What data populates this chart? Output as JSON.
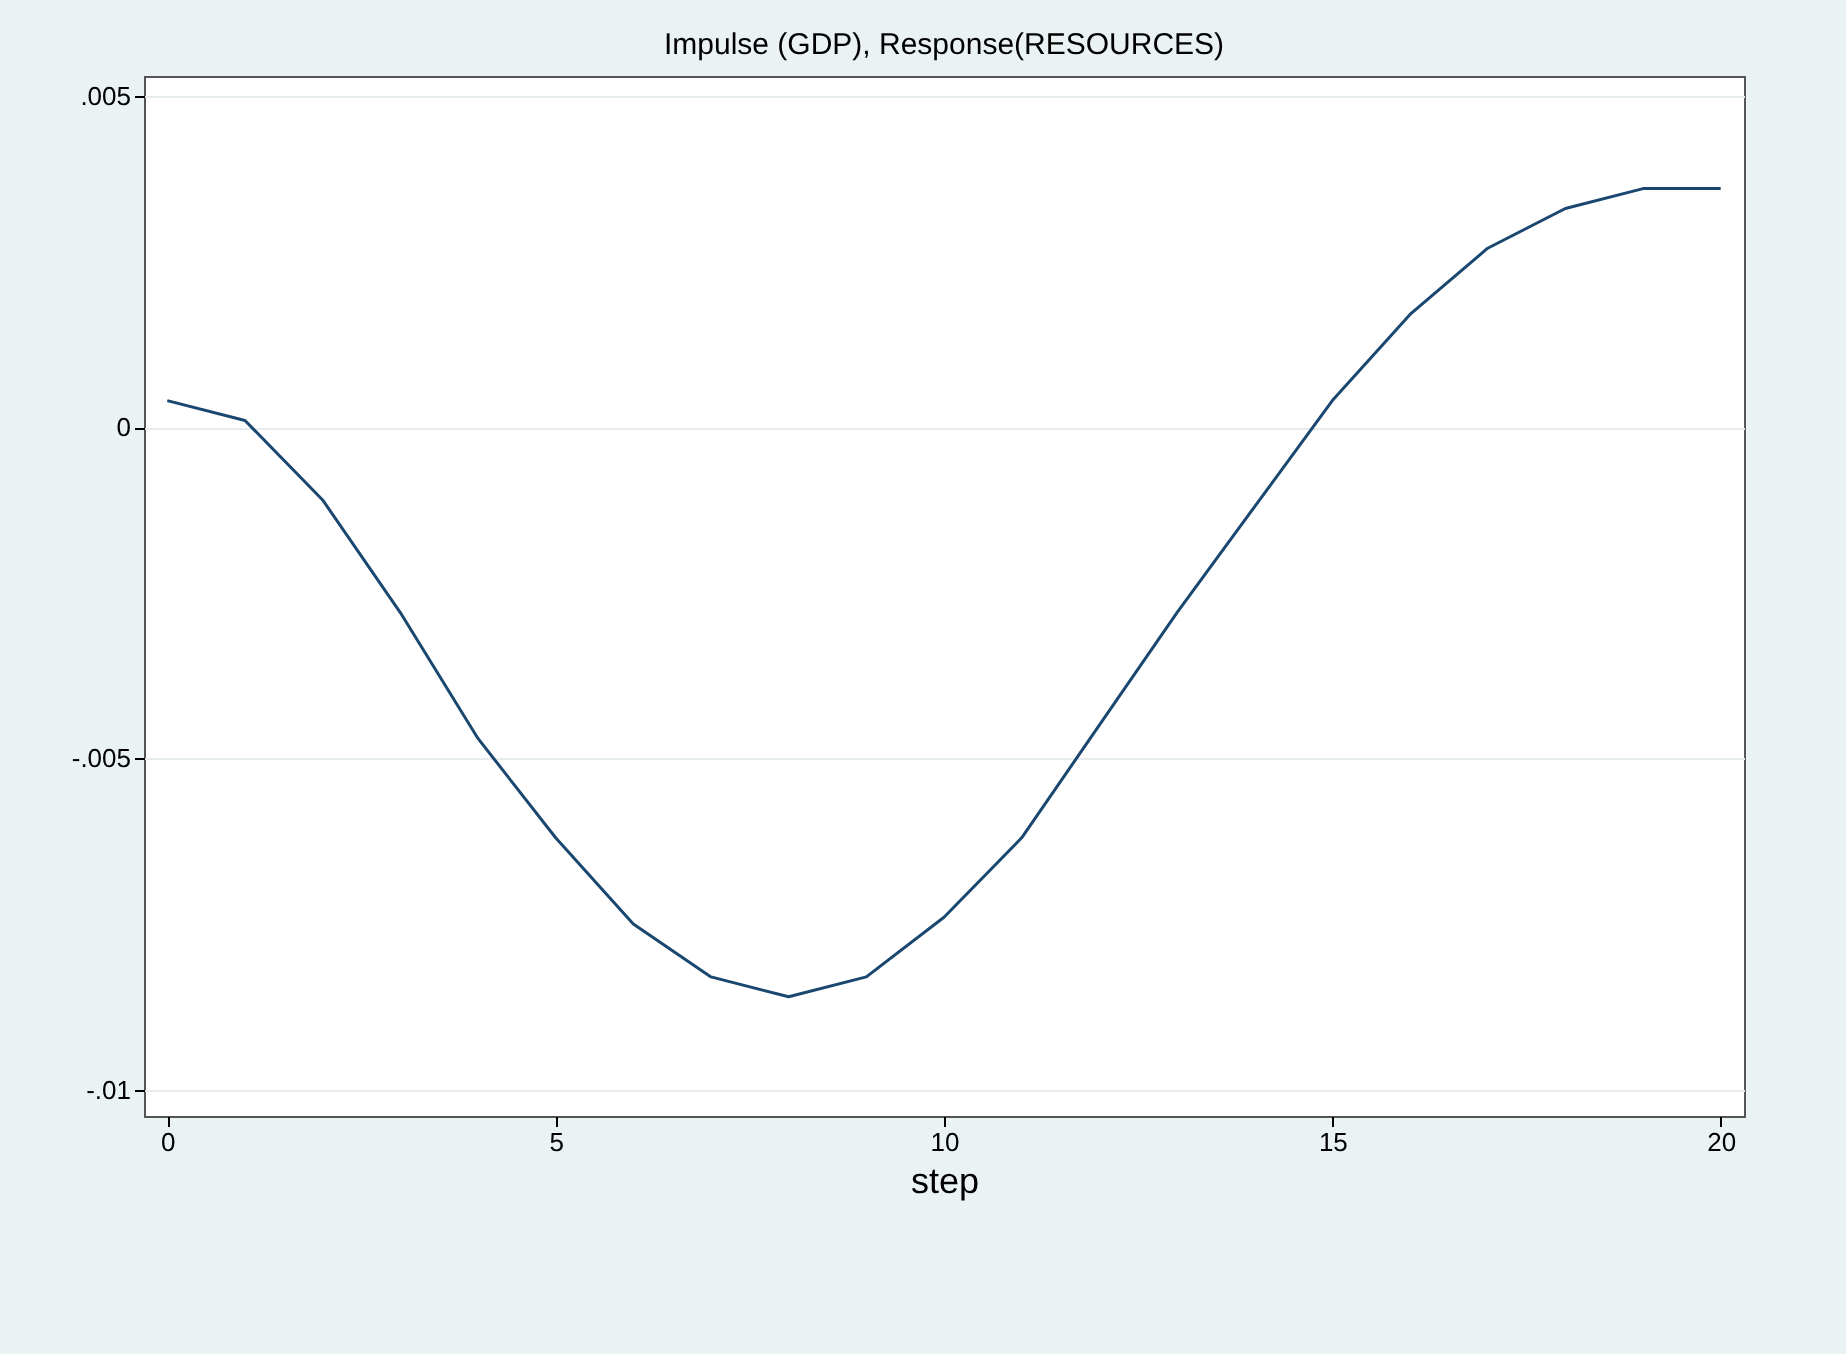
{
  "chart_data": {
    "type": "line",
    "title": "Impulse (GDP), Response(RESOURCES)",
    "xlabel": "step",
    "x": [
      0,
      1,
      2,
      3,
      4,
      5,
      6,
      7,
      8,
      9,
      10,
      11,
      12,
      13,
      14,
      15,
      16,
      17,
      18,
      19,
      20
    ],
    "series": [
      {
        "color": "#1a476f",
        "values": [
          0.0004,
          0.0001,
          -0.0011,
          -0.0028,
          -0.0047,
          -0.0062,
          -0.0075,
          -0.0083,
          -0.0086,
          -0.0083,
          -0.0074,
          -0.0062,
          -0.0045,
          -0.0028,
          -0.0012,
          0.0004,
          0.0017,
          0.0027,
          0.0033,
          0.0036,
          0.0036
        ]
      }
    ],
    "xlim": [
      -0.3,
      20.3
    ],
    "xticks": [
      0,
      5,
      10,
      15,
      20
    ],
    "ylim": [
      -0.0104,
      0.0053
    ],
    "yticks": [
      {
        "value": 0.005,
        "label": ".005"
      },
      {
        "value": 0,
        "label": "0"
      },
      {
        "value": -0.005,
        "label": "-.005"
      },
      {
        "value": -0.01,
        "label": "-.01"
      }
    ],
    "grid": "y",
    "marker": "none",
    "line_style": "solid"
  }
}
